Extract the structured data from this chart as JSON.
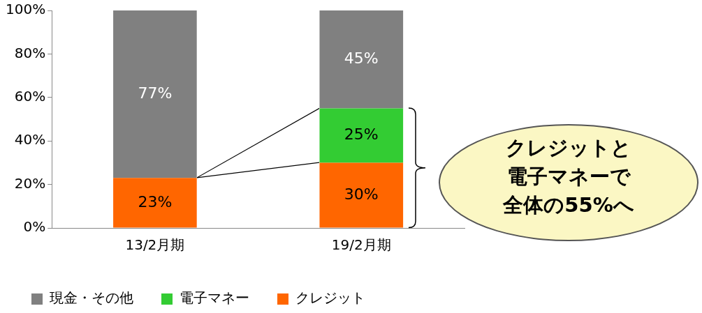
{
  "chart_data": {
    "type": "bar",
    "stacked": true,
    "categories": [
      "13/2月期",
      "19/2月期"
    ],
    "series": [
      {
        "name": "クレジット",
        "color": "#ff6600",
        "values": [
          23,
          30
        ],
        "value_labels": [
          "23%",
          "30%"
        ]
      },
      {
        "name": "電子マネー",
        "color": "#33cc33",
        "values": [
          0,
          25
        ],
        "value_labels": [
          null,
          "25%"
        ]
      },
      {
        "name": "現金・その他",
        "color": "#808080",
        "values": [
          77,
          45
        ],
        "value_labels": [
          "77%",
          "45%"
        ]
      }
    ],
    "ylim": [
      0,
      100
    ],
    "yticks": [
      {
        "value": 0,
        "label": "0%"
      },
      {
        "value": 20,
        "label": "20%"
      },
      {
        "value": 40,
        "label": "40%"
      },
      {
        "value": 60,
        "label": "60%"
      },
      {
        "value": 80,
        "label": "80%"
      },
      {
        "value": 100,
        "label": "100%"
      }
    ],
    "grid": false,
    "legend": "bottom",
    "annotations": [
      "クレジットと電子マネーで全体の55%へ"
    ]
  }
}
